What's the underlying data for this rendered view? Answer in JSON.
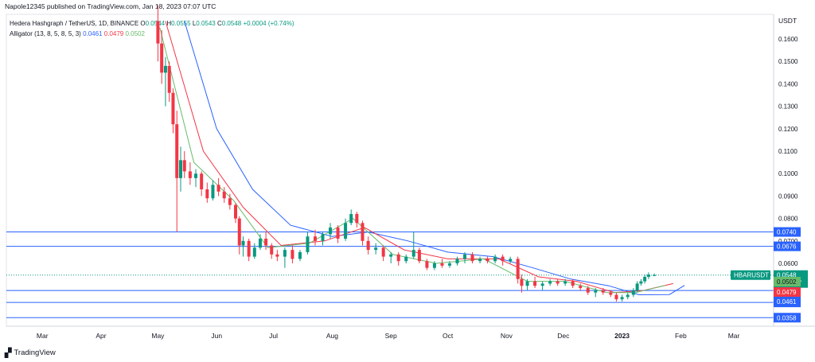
{
  "header": {
    "published": "Napole12345 published on TradingView.com, Jan 18, 2023 07:07 UTC"
  },
  "legend": {
    "symbol": "Hedera Hashgraph / TetherUS, 1D, BINANCE",
    "o_label": "O",
    "o_value": "0.0544",
    "h_label": "H",
    "h_value": "0.0555",
    "l_label": "L",
    "l_value": "0.0543",
    "c_label": "C",
    "c_value": "0.0548",
    "change": "+0.0004 (+0.74%)",
    "alligator_label": "Alligator (13, 8, 5, 8, 5, 3)",
    "jaw": "0.0461",
    "teeth": "0.0479",
    "lips": "0.0502"
  },
  "footer": {
    "brand": "TradingView"
  },
  "colors": {
    "up": "#089981",
    "down": "#f23645",
    "jaw": "#2962ff",
    "teeth": "#f23645",
    "lips": "#66bb6a",
    "level": "#2962ff"
  },
  "chart_data": {
    "type": "candlestick",
    "currency_label": "USDT",
    "symbol_tag": "HBARUSDT",
    "countdown": "16:52:07",
    "y_ticks": [
      "0.1600",
      "0.1500",
      "0.1400",
      "0.1300",
      "0.1200",
      "0.1100",
      "0.1000",
      "0.0900",
      "0.0800",
      "0.0700",
      "0.0600"
    ],
    "x_ticks": [
      "Mar",
      "Apr",
      "May",
      "Jun",
      "Jul",
      "Aug",
      "Sep",
      "Oct",
      "Nov",
      "Dec",
      "2023",
      "Feb",
      "Mar"
    ],
    "horizontal_levels": [
      {
        "price": 0.074,
        "label": "0.0740"
      },
      {
        "price": 0.0676,
        "label": "0.0676"
      },
      {
        "price": 0.0479,
        "label": ""
      },
      {
        "price": 0.0426,
        "label": "0.0426"
      },
      {
        "price": 0.0358,
        "label": "0.0358"
      }
    ],
    "price_tags": [
      {
        "label": "0.0548",
        "kind": "last"
      },
      {
        "label": "0.0502",
        "kind": "lips"
      },
      {
        "label": "0.0479",
        "kind": "teeth"
      },
      {
        "label": "0.0461",
        "kind": "jaw"
      }
    ],
    "ylim": [
      0.032,
      0.171
    ],
    "candles": [
      {
        "d": "2022-05-01",
        "o": 0.168,
        "h": 0.175,
        "l": 0.15,
        "c": 0.158
      },
      {
        "d": "2022-05-03",
        "o": 0.158,
        "h": 0.164,
        "l": 0.14,
        "c": 0.145
      },
      {
        "d": "2022-05-05",
        "o": 0.145,
        "h": 0.152,
        "l": 0.13,
        "c": 0.148
      },
      {
        "d": "2022-05-07",
        "o": 0.148,
        "h": 0.15,
        "l": 0.132,
        "c": 0.136
      },
      {
        "d": "2022-05-09",
        "o": 0.136,
        "h": 0.138,
        "l": 0.118,
        "c": 0.122
      },
      {
        "d": "2022-05-11",
        "o": 0.122,
        "h": 0.128,
        "l": 0.074,
        "c": 0.098
      },
      {
        "d": "2022-05-13",
        "o": 0.098,
        "h": 0.112,
        "l": 0.092,
        "c": 0.106
      },
      {
        "d": "2022-05-15",
        "o": 0.106,
        "h": 0.11,
        "l": 0.098,
        "c": 0.101
      },
      {
        "d": "2022-05-18",
        "o": 0.101,
        "h": 0.105,
        "l": 0.095,
        "c": 0.098
      },
      {
        "d": "2022-05-21",
        "o": 0.098,
        "h": 0.102,
        "l": 0.094,
        "c": 0.1
      },
      {
        "d": "2022-05-24",
        "o": 0.1,
        "h": 0.101,
        "l": 0.09,
        "c": 0.093
      },
      {
        "d": "2022-05-27",
        "o": 0.093,
        "h": 0.096,
        "l": 0.087,
        "c": 0.089
      },
      {
        "d": "2022-05-30",
        "o": 0.089,
        "h": 0.097,
        "l": 0.088,
        "c": 0.095
      },
      {
        "d": "2022-06-02",
        "o": 0.095,
        "h": 0.098,
        "l": 0.09,
        "c": 0.092
      },
      {
        "d": "2022-06-05",
        "o": 0.092,
        "h": 0.094,
        "l": 0.087,
        "c": 0.089
      },
      {
        "d": "2022-06-08",
        "o": 0.089,
        "h": 0.091,
        "l": 0.084,
        "c": 0.086
      },
      {
        "d": "2022-06-11",
        "o": 0.086,
        "h": 0.087,
        "l": 0.078,
        "c": 0.08
      },
      {
        "d": "2022-06-13",
        "o": 0.08,
        "h": 0.081,
        "l": 0.064,
        "c": 0.068
      },
      {
        "d": "2022-06-15",
        "o": 0.068,
        "h": 0.072,
        "l": 0.063,
        "c": 0.07
      },
      {
        "d": "2022-06-18",
        "o": 0.07,
        "h": 0.071,
        "l": 0.061,
        "c": 0.063
      },
      {
        "d": "2022-06-21",
        "o": 0.063,
        "h": 0.069,
        "l": 0.062,
        "c": 0.067
      },
      {
        "d": "2022-06-24",
        "o": 0.067,
        "h": 0.073,
        "l": 0.066,
        "c": 0.071
      },
      {
        "d": "2022-06-27",
        "o": 0.071,
        "h": 0.074,
        "l": 0.066,
        "c": 0.068
      },
      {
        "d": "2022-06-30",
        "o": 0.068,
        "h": 0.069,
        "l": 0.062,
        "c": 0.064
      },
      {
        "d": "2022-07-03",
        "o": 0.064,
        "h": 0.066,
        "l": 0.061,
        "c": 0.063
      },
      {
        "d": "2022-07-07",
        "o": 0.063,
        "h": 0.067,
        "l": 0.058,
        "c": 0.066
      },
      {
        "d": "2022-07-11",
        "o": 0.066,
        "h": 0.068,
        "l": 0.06,
        "c": 0.062
      },
      {
        "d": "2022-07-15",
        "o": 0.062,
        "h": 0.066,
        "l": 0.061,
        "c": 0.065
      },
      {
        "d": "2022-07-19",
        "o": 0.065,
        "h": 0.074,
        "l": 0.064,
        "c": 0.072
      },
      {
        "d": "2022-07-23",
        "o": 0.072,
        "h": 0.075,
        "l": 0.068,
        "c": 0.07
      },
      {
        "d": "2022-07-27",
        "o": 0.07,
        "h": 0.074,
        "l": 0.068,
        "c": 0.073
      },
      {
        "d": "2022-07-31",
        "o": 0.073,
        "h": 0.078,
        "l": 0.071,
        "c": 0.076
      },
      {
        "d": "2022-08-04",
        "o": 0.076,
        "h": 0.077,
        "l": 0.069,
        "c": 0.071
      },
      {
        "d": "2022-08-08",
        "o": 0.071,
        "h": 0.08,
        "l": 0.07,
        "c": 0.078
      },
      {
        "d": "2022-08-11",
        "o": 0.078,
        "h": 0.084,
        "l": 0.077,
        "c": 0.082
      },
      {
        "d": "2022-08-14",
        "o": 0.082,
        "h": 0.083,
        "l": 0.076,
        "c": 0.078
      },
      {
        "d": "2022-08-17",
        "o": 0.078,
        "h": 0.079,
        "l": 0.068,
        "c": 0.07
      },
      {
        "d": "2022-08-20",
        "o": 0.07,
        "h": 0.072,
        "l": 0.064,
        "c": 0.066
      },
      {
        "d": "2022-08-24",
        "o": 0.066,
        "h": 0.069,
        "l": 0.064,
        "c": 0.067
      },
      {
        "d": "2022-08-28",
        "o": 0.067,
        "h": 0.068,
        "l": 0.061,
        "c": 0.063
      },
      {
        "d": "2022-09-01",
        "o": 0.063,
        "h": 0.065,
        "l": 0.06,
        "c": 0.064
      },
      {
        "d": "2022-09-05",
        "o": 0.064,
        "h": 0.065,
        "l": 0.059,
        "c": 0.061
      },
      {
        "d": "2022-09-09",
        "o": 0.061,
        "h": 0.064,
        "l": 0.06,
        "c": 0.063
      },
      {
        "d": "2022-09-13",
        "o": 0.063,
        "h": 0.074,
        "l": 0.062,
        "c": 0.066
      },
      {
        "d": "2022-09-16",
        "o": 0.066,
        "h": 0.067,
        "l": 0.06,
        "c": 0.061
      },
      {
        "d": "2022-09-20",
        "o": 0.061,
        "h": 0.062,
        "l": 0.057,
        "c": 0.058
      },
      {
        "d": "2022-09-24",
        "o": 0.058,
        "h": 0.061,
        "l": 0.057,
        "c": 0.06
      },
      {
        "d": "2022-09-28",
        "o": 0.06,
        "h": 0.062,
        "l": 0.058,
        "c": 0.059
      },
      {
        "d": "2022-10-02",
        "o": 0.059,
        "h": 0.061,
        "l": 0.058,
        "c": 0.06
      },
      {
        "d": "2022-10-06",
        "o": 0.06,
        "h": 0.063,
        "l": 0.059,
        "c": 0.062
      },
      {
        "d": "2022-10-10",
        "o": 0.062,
        "h": 0.065,
        "l": 0.06,
        "c": 0.064
      },
      {
        "d": "2022-10-14",
        "o": 0.064,
        "h": 0.065,
        "l": 0.06,
        "c": 0.061
      },
      {
        "d": "2022-10-18",
        "o": 0.061,
        "h": 0.063,
        "l": 0.06,
        "c": 0.062
      },
      {
        "d": "2022-10-22",
        "o": 0.062,
        "h": 0.063,
        "l": 0.06,
        "c": 0.061
      },
      {
        "d": "2022-10-26",
        "o": 0.061,
        "h": 0.064,
        "l": 0.06,
        "c": 0.063
      },
      {
        "d": "2022-10-30",
        "o": 0.063,
        "h": 0.064,
        "l": 0.059,
        "c": 0.061
      },
      {
        "d": "2022-11-03",
        "o": 0.061,
        "h": 0.063,
        "l": 0.06,
        "c": 0.062
      },
      {
        "d": "2022-11-07",
        "o": 0.062,
        "h": 0.063,
        "l": 0.051,
        "c": 0.053
      },
      {
        "d": "2022-11-09",
        "o": 0.053,
        "h": 0.055,
        "l": 0.047,
        "c": 0.05
      },
      {
        "d": "2022-11-12",
        "o": 0.05,
        "h": 0.053,
        "l": 0.048,
        "c": 0.052
      },
      {
        "d": "2022-11-16",
        "o": 0.052,
        "h": 0.054,
        "l": 0.049,
        "c": 0.05
      },
      {
        "d": "2022-11-20",
        "o": 0.05,
        "h": 0.052,
        "l": 0.048,
        "c": 0.051
      },
      {
        "d": "2022-11-24",
        "o": 0.051,
        "h": 0.053,
        "l": 0.05,
        "c": 0.052
      },
      {
        "d": "2022-11-28",
        "o": 0.052,
        "h": 0.053,
        "l": 0.05,
        "c": 0.051
      },
      {
        "d": "2022-12-02",
        "o": 0.051,
        "h": 0.053,
        "l": 0.05,
        "c": 0.052
      },
      {
        "d": "2022-12-06",
        "o": 0.052,
        "h": 0.053,
        "l": 0.049,
        "c": 0.05
      },
      {
        "d": "2022-12-10",
        "o": 0.05,
        "h": 0.051,
        "l": 0.048,
        "c": 0.049
      },
      {
        "d": "2022-12-14",
        "o": 0.049,
        "h": 0.05,
        "l": 0.046,
        "c": 0.047
      },
      {
        "d": "2022-12-18",
        "o": 0.047,
        "h": 0.049,
        "l": 0.045,
        "c": 0.048
      },
      {
        "d": "2022-12-22",
        "o": 0.048,
        "h": 0.049,
        "l": 0.046,
        "c": 0.047
      },
      {
        "d": "2022-12-26",
        "o": 0.047,
        "h": 0.048,
        "l": 0.045,
        "c": 0.046
      },
      {
        "d": "2022-12-29",
        "o": 0.046,
        "h": 0.047,
        "l": 0.043,
        "c": 0.044
      },
      {
        "d": "2023-01-01",
        "o": 0.044,
        "h": 0.046,
        "l": 0.043,
        "c": 0.045
      },
      {
        "d": "2023-01-04",
        "o": 0.045,
        "h": 0.047,
        "l": 0.044,
        "c": 0.046
      },
      {
        "d": "2023-01-07",
        "o": 0.046,
        "h": 0.049,
        "l": 0.045,
        "c": 0.048
      },
      {
        "d": "2023-01-09",
        "o": 0.048,
        "h": 0.052,
        "l": 0.047,
        "c": 0.051
      },
      {
        "d": "2023-01-11",
        "o": 0.051,
        "h": 0.053,
        "l": 0.05,
        "c": 0.052
      },
      {
        "d": "2023-01-13",
        "o": 0.052,
        "h": 0.055,
        "l": 0.051,
        "c": 0.054
      },
      {
        "d": "2023-01-15",
        "o": 0.054,
        "h": 0.056,
        "l": 0.053,
        "c": 0.055
      },
      {
        "d": "2023-01-18",
        "o": 0.0544,
        "h": 0.0555,
        "l": 0.0543,
        "c": 0.0548
      }
    ],
    "alligator": {
      "jaw": [
        {
          "d": "2022-05-15",
          "v": 0.168
        },
        {
          "d": "2022-06-01",
          "v": 0.12
        },
        {
          "d": "2022-06-20",
          "v": 0.093
        },
        {
          "d": "2022-07-10",
          "v": 0.077
        },
        {
          "d": "2022-08-01",
          "v": 0.072
        },
        {
          "d": "2022-08-20",
          "v": 0.074
        },
        {
          "d": "2022-09-10",
          "v": 0.07
        },
        {
          "d": "2022-10-01",
          "v": 0.065
        },
        {
          "d": "2022-10-25",
          "v": 0.063
        },
        {
          "d": "2022-11-15",
          "v": 0.058
        },
        {
          "d": "2022-12-05",
          "v": 0.053
        },
        {
          "d": "2022-12-25",
          "v": 0.05
        },
        {
          "d": "2023-01-10",
          "v": 0.046
        },
        {
          "d": "2023-01-26",
          "v": 0.0461
        },
        {
          "d": "2023-02-03",
          "v": 0.0502
        }
      ],
      "teeth": [
        {
          "d": "2022-05-05",
          "v": 0.168
        },
        {
          "d": "2022-05-25",
          "v": 0.11
        },
        {
          "d": "2022-06-15",
          "v": 0.085
        },
        {
          "d": "2022-07-05",
          "v": 0.068
        },
        {
          "d": "2022-07-28",
          "v": 0.07
        },
        {
          "d": "2022-08-18",
          "v": 0.076
        },
        {
          "d": "2022-09-08",
          "v": 0.066
        },
        {
          "d": "2022-10-01",
          "v": 0.062
        },
        {
          "d": "2022-10-28",
          "v": 0.062
        },
        {
          "d": "2022-11-18",
          "v": 0.054
        },
        {
          "d": "2022-12-08",
          "v": 0.052
        },
        {
          "d": "2022-12-28",
          "v": 0.047
        },
        {
          "d": "2023-01-12",
          "v": 0.0479
        },
        {
          "d": "2023-01-28",
          "v": 0.051
        }
      ],
      "lips": [
        {
          "d": "2022-05-02",
          "v": 0.165
        },
        {
          "d": "2022-05-20",
          "v": 0.105
        },
        {
          "d": "2022-06-10",
          "v": 0.088
        },
        {
          "d": "2022-06-28",
          "v": 0.067
        },
        {
          "d": "2022-07-20",
          "v": 0.069
        },
        {
          "d": "2022-08-12",
          "v": 0.08
        },
        {
          "d": "2022-09-02",
          "v": 0.064
        },
        {
          "d": "2022-09-25",
          "v": 0.06
        },
        {
          "d": "2022-10-20",
          "v": 0.062
        },
        {
          "d": "2022-11-12",
          "v": 0.052
        },
        {
          "d": "2022-12-02",
          "v": 0.052
        },
        {
          "d": "2022-12-24",
          "v": 0.047
        },
        {
          "d": "2023-01-08",
          "v": 0.047
        },
        {
          "d": "2023-01-24",
          "v": 0.0502
        }
      ]
    }
  }
}
